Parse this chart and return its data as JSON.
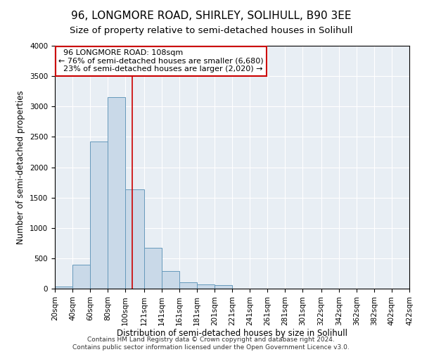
{
  "title_line1": "96, LONGMORE ROAD, SHIRLEY, SOLIHULL, B90 3EE",
  "title_line2": "Size of property relative to semi-detached houses in Solihull",
  "xlabel": "Distribution of semi-detached houses by size in Solihull",
  "ylabel": "Number of semi-detached properties",
  "footer_line1": "Contains HM Land Registry data © Crown copyright and database right 2024.",
  "footer_line2": "Contains public sector information licensed under the Open Government Licence v3.0.",
  "annotation_title": "96 LONGMORE ROAD: 108sqm",
  "annotation_line1": "← 76% of semi-detached houses are smaller (6,680)",
  "annotation_line2": "23% of semi-detached houses are larger (2,020) →",
  "property_size": 108,
  "bin_edges": [
    20,
    40,
    60,
    80,
    100,
    121,
    141,
    161,
    181,
    201,
    221,
    241,
    261,
    281,
    301,
    322,
    342,
    362,
    382,
    402,
    422
  ],
  "bar_heights": [
    30,
    390,
    2420,
    3150,
    1640,
    670,
    290,
    110,
    65,
    55,
    0,
    0,
    0,
    0,
    0,
    0,
    0,
    0,
    0,
    0
  ],
  "bar_color": "#c9d9e8",
  "bar_edge_color": "#6699bb",
  "vline_color": "#cc0000",
  "vline_x": 108,
  "ylim": [
    0,
    4000
  ],
  "xlim": [
    20,
    422
  ],
  "background_color": "#e8eef4",
  "annotation_box_color": "white",
  "annotation_box_edge": "#cc0000",
  "grid_color": "white",
  "title_fontsize": 11,
  "subtitle_fontsize": 9.5,
  "tick_label_fontsize": 7.5,
  "axis_label_fontsize": 8.5,
  "annotation_fontsize": 8,
  "footer_fontsize": 6.5
}
